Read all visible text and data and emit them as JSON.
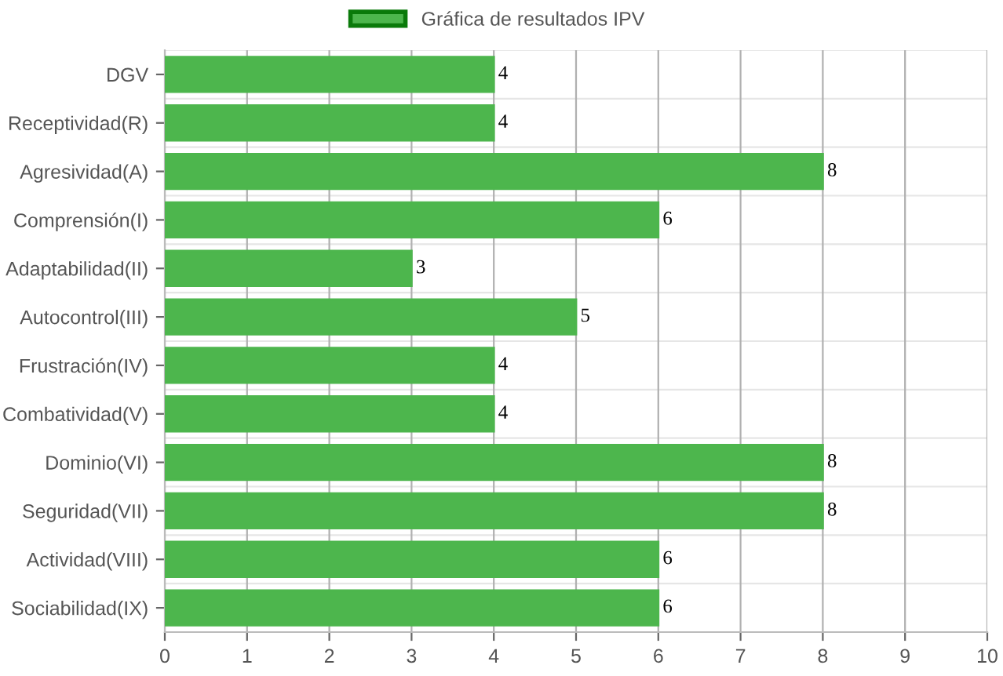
{
  "chart_data": {
    "type": "bar",
    "orientation": "horizontal",
    "categories": [
      "DGV",
      "Receptividad(R)",
      "Agresividad(A)",
      "Comprensión(I)",
      "Adaptabilidad(II)",
      "Autocontrol(III)",
      "Frustración(IV)",
      "Combatividad(V)",
      "Dominio(VI)",
      "Seguridad(VII)",
      "Actividad(VIII)",
      "Sociabilidad(IX)"
    ],
    "series": [
      {
        "name": "Gráfica de resultados IPV",
        "color": "#4db64d",
        "values": [
          4,
          4,
          8,
          6,
          3,
          5,
          4,
          4,
          8,
          8,
          6,
          6
        ]
      }
    ],
    "xlim": [
      0,
      10
    ],
    "xticks": [
      0,
      1,
      2,
      3,
      4,
      5,
      6,
      7,
      8,
      9,
      10
    ],
    "grid": true,
    "legend": "top",
    "data_labels": true
  }
}
